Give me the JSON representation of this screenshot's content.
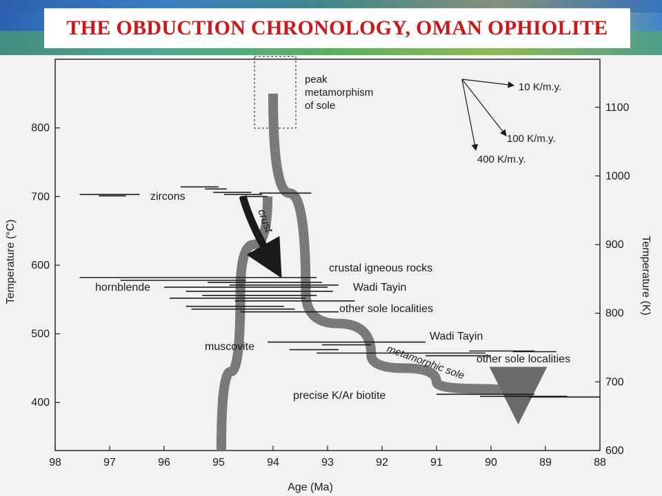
{
  "slide": {
    "title": "THE OBDUCTION CHRONOLOGY, OMAN OPHIOLITE",
    "title_color": "#d21414"
  },
  "chart_data": {
    "type": "scatter",
    "xlabel": "Age (Ma)",
    "ylabel": "Temperature (°C)",
    "y2label": "Temperature (K)",
    "xlim": [
      98,
      88
    ],
    "ylim": [
      330,
      900
    ],
    "y2lim": [
      600,
      1170
    ],
    "xticks": [
      "98",
      "97",
      "96",
      "95",
      "94",
      "93",
      "92",
      "91",
      "90",
      "89",
      "88"
    ],
    "yticks": [
      "400",
      "500",
      "600",
      "700",
      "800"
    ],
    "y2ticks": [
      "600",
      "700",
      "800",
      "900",
      "1000",
      "1100"
    ],
    "annotations": {
      "peak": [
        "peak",
        "metamorphism",
        "of sole"
      ],
      "rate_10": "10 K/m.y.",
      "rate_100": "100 K/m.y.",
      "rate_400": "400 K/m.y.",
      "zircons": "zircons",
      "crust": "crust",
      "crustal_igneous": "crustal igneous rocks",
      "wadi_tayin_hbl": "Wadi Tayin",
      "other_sole_hbl": "other sole localities",
      "hornblende": "hornblende",
      "muscovite": "muscovite",
      "wadi_tayin_mus": "Wadi Tayin",
      "other_sole_mus": "other sole localities",
      "metamorphic_sole": "metamorphic sole",
      "biotite": "precise K/Ar biotite"
    },
    "paths": {
      "crust": {
        "age": [
          94.1,
          94.6,
          94.95
        ],
        "temp": [
          700,
          560,
          330
        ]
      },
      "sole": {
        "age": [
          94.0,
          93.4,
          92.2,
          91.0,
          89.5
        ],
        "temp": [
          850,
          560,
          470,
          430,
          410
        ]
      }
    },
    "age_bars": {
      "zircons": [
        {
          "from": 97.55,
          "to": 96.45,
          "temp": 703
        },
        {
          "from": 97.2,
          "to": 96.7,
          "temp": 701
        },
        {
          "from": 95.7,
          "to": 95.0,
          "temp": 714
        },
        {
          "from": 95.25,
          "to": 94.85,
          "temp": 711
        },
        {
          "from": 95.1,
          "to": 94.4,
          "temp": 706
        },
        {
          "from": 94.9,
          "to": 94.2,
          "temp": 703
        },
        {
          "from": 94.6,
          "to": 94.1,
          "temp": 700
        },
        {
          "from": 94.25,
          "to": 93.3,
          "temp": 705
        }
      ],
      "hornblende": [
        {
          "from": 97.55,
          "to": 93.2,
          "temp": 582
        },
        {
          "from": 96.8,
          "to": 94.5,
          "temp": 578
        },
        {
          "from": 95.2,
          "to": 93.1,
          "temp": 575
        },
        {
          "from": 94.8,
          "to": 92.8,
          "temp": 571
        },
        {
          "from": 96.0,
          "to": 93.0,
          "temp": 568
        },
        {
          "from": 95.6,
          "to": 92.9,
          "temp": 562
        },
        {
          "from": 95.3,
          "to": 93.2,
          "temp": 556
        },
        {
          "from": 95.9,
          "to": 93.4,
          "temp": 552
        },
        {
          "from": 94.7,
          "to": 92.5,
          "temp": 548
        },
        {
          "from": 95.6,
          "to": 93.8,
          "temp": 540
        },
        {
          "from": 95.5,
          "to": 93.6,
          "temp": 536
        },
        {
          "from": 94.6,
          "to": 92.8,
          "temp": 532
        }
      ],
      "muscovite": [
        {
          "from": 94.1,
          "to": 91.2,
          "temp": 488
        },
        {
          "from": 93.1,
          "to": 92.2,
          "temp": 484
        },
        {
          "from": 93.7,
          "to": 92.8,
          "temp": 477
        },
        {
          "from": 93.2,
          "to": 90.1,
          "temp": 472
        },
        {
          "from": 91.2,
          "to": 90.0,
          "temp": 468
        },
        {
          "from": 90.4,
          "to": 89.2,
          "temp": 475
        },
        {
          "from": 89.6,
          "to": 88.8,
          "temp": 474
        }
      ],
      "biotite": [
        {
          "from": 91.0,
          "to": 89.2,
          "temp": 412
        },
        {
          "from": 90.2,
          "to": 88.6,
          "temp": 409
        },
        {
          "from": 89.3,
          "to": 88.0,
          "temp": 408
        }
      ]
    }
  }
}
